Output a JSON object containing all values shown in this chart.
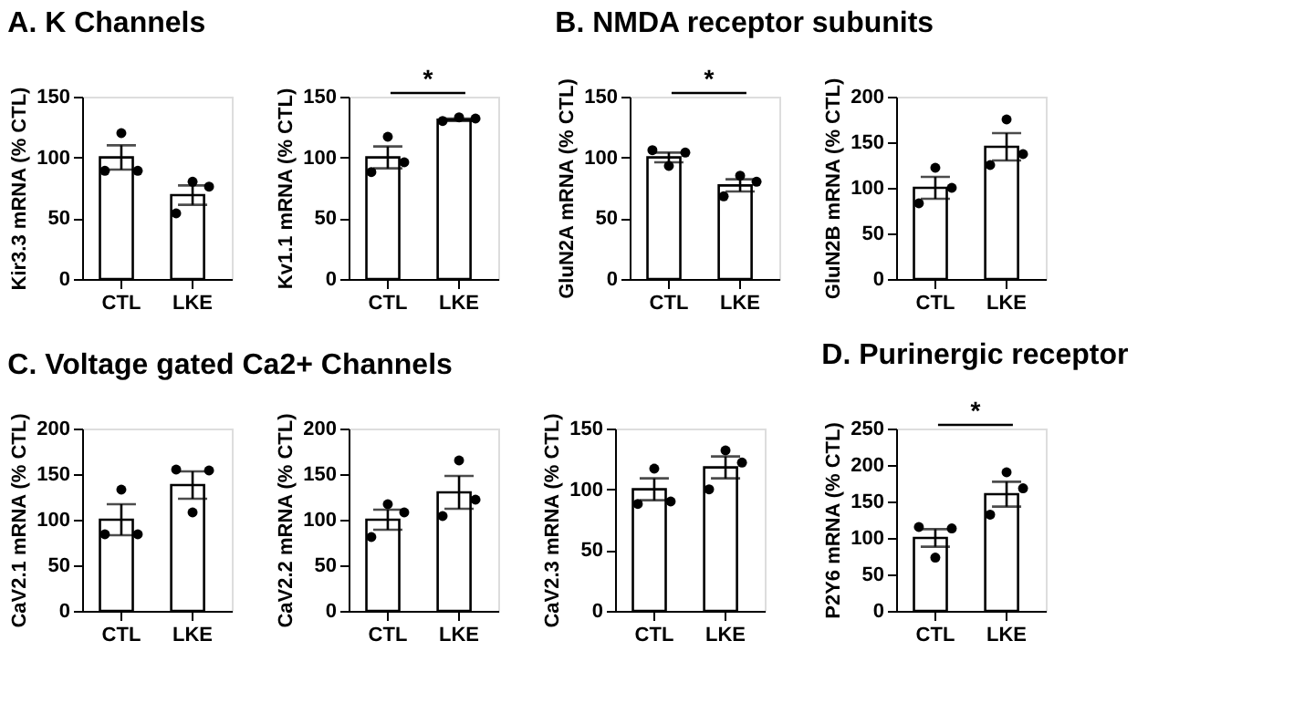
{
  "chart_data": [
    {
      "type": "bar",
      "title": "A. K Channels",
      "ylabel": "Kir3.3 mRNA (%  CTL)",
      "categories": [
        "CTL",
        "LKE"
      ],
      "ylim": [
        0,
        150
      ],
      "yticks": [
        0,
        50,
        100,
        150
      ],
      "grid": false,
      "marker": "circle",
      "series": [
        {
          "color": "#ffffff",
          "values": [
            100,
            69
          ],
          "errors": [
            10,
            8
          ]
        },
        {
          "type": "scatter",
          "color": "#000000",
          "x": [
            "CTL",
            "CTL",
            "CTL",
            "LKE",
            "LKE",
            "LKE"
          ],
          "values": [
            89,
            120,
            89,
            54,
            80,
            76
          ]
        }
      ]
    },
    {
      "type": "bar",
      "ylabel": "Kv1.1 mRNA (%  CTL)",
      "categories": [
        "CTL",
        "LKE"
      ],
      "ylim": [
        0,
        150
      ],
      "yticks": [
        0,
        50,
        100,
        150
      ],
      "grid": false,
      "marker": "circle",
      "annotations": [
        "*"
      ],
      "series": [
        {
          "color": "#ffffff",
          "values": [
            100,
            131
          ],
          "errors": [
            9,
            1
          ]
        },
        {
          "type": "scatter",
          "color": "#000000",
          "x": [
            "CTL",
            "CTL",
            "CTL",
            "LKE",
            "LKE",
            "LKE"
          ],
          "values": [
            88,
            117,
            96,
            130,
            133,
            132
          ]
        }
      ]
    },
    {
      "type": "bar",
      "title": "B. NMDA receptor subunits",
      "ylabel": "GluN2A mRNA (%  CTL)",
      "categories": [
        "CTL",
        "LKE"
      ],
      "ylim": [
        0,
        150
      ],
      "yticks": [
        0,
        50,
        100,
        150
      ],
      "grid": false,
      "marker": "circle",
      "annotations": [
        "*"
      ],
      "series": [
        {
          "color": "#ffffff",
          "values": [
            100,
            77
          ],
          "errors": [
            4,
            5
          ]
        },
        {
          "type": "scatter",
          "color": "#000000",
          "x": [
            "CTL",
            "CTL",
            "CTL",
            "LKE",
            "LKE",
            "LKE"
          ],
          "values": [
            106,
            93,
            104,
            68,
            85,
            80
          ]
        }
      ]
    },
    {
      "type": "bar",
      "ylabel": "GluN2B mRNA (%  CTL)",
      "categories": [
        "CTL",
        "LKE"
      ],
      "ylim": [
        0,
        200
      ],
      "yticks": [
        0,
        50,
        100,
        150,
        200
      ],
      "grid": false,
      "marker": "circle",
      "series": [
        {
          "color": "#ffffff",
          "values": [
            100,
            145
          ],
          "errors": [
            12,
            15
          ]
        },
        {
          "type": "scatter",
          "color": "#000000",
          "x": [
            "CTL",
            "CTL",
            "CTL",
            "LKE",
            "LKE",
            "LKE"
          ],
          "values": [
            83,
            122,
            100,
            125,
            175,
            137
          ]
        }
      ]
    },
    {
      "type": "bar",
      "title": "C. Voltage gated Ca2+ Channels",
      "ylabel": "CaV2.1 mRNA (%  CTL)",
      "categories": [
        "CTL",
        "LKE"
      ],
      "ylim": [
        0,
        200
      ],
      "yticks": [
        0,
        50,
        100,
        150,
        200
      ],
      "grid": false,
      "marker": "circle",
      "series": [
        {
          "color": "#ffffff",
          "values": [
            100,
            138
          ],
          "errors": [
            17,
            15
          ]
        },
        {
          "type": "scatter",
          "color": "#000000",
          "x": [
            "CTL",
            "CTL",
            "CTL",
            "LKE",
            "LKE",
            "LKE"
          ],
          "values": [
            84,
            133,
            84,
            155,
            108,
            154
          ]
        }
      ]
    },
    {
      "type": "bar",
      "ylabel": "CaV2.2 mRNA (%  CTL)",
      "categories": [
        "CTL",
        "LKE"
      ],
      "ylim": [
        0,
        200
      ],
      "yticks": [
        0,
        50,
        100,
        150,
        200
      ],
      "grid": false,
      "marker": "circle",
      "series": [
        {
          "color": "#ffffff",
          "values": [
            100,
            130
          ],
          "errors": [
            11,
            18
          ]
        },
        {
          "type": "scatter",
          "color": "#000000",
          "x": [
            "CTL",
            "CTL",
            "CTL",
            "LKE",
            "LKE",
            "LKE"
          ],
          "values": [
            81,
            117,
            108,
            104,
            165,
            122
          ]
        }
      ]
    },
    {
      "type": "bar",
      "ylabel": "CaV2.3 mRNA (%  CTL)",
      "categories": [
        "CTL",
        "LKE"
      ],
      "ylim": [
        0,
        150
      ],
      "yticks": [
        0,
        50,
        100,
        150
      ],
      "grid": false,
      "marker": "circle",
      "series": [
        {
          "color": "#ffffff",
          "values": [
            100,
            118
          ],
          "errors": [
            9,
            9
          ]
        },
        {
          "type": "scatter",
          "color": "#000000",
          "x": [
            "CTL",
            "CTL",
            "CTL",
            "LKE",
            "LKE",
            "LKE"
          ],
          "values": [
            88,
            117,
            90,
            100,
            132,
            122
          ]
        }
      ]
    },
    {
      "type": "bar",
      "title": "D. Purinergic receptor",
      "ylabel": "P2Y6 mRNA (%  CTL)",
      "categories": [
        "CTL",
        "LKE"
      ],
      "ylim": [
        0,
        250
      ],
      "yticks": [
        0,
        50,
        100,
        150,
        200,
        250
      ],
      "grid": false,
      "marker": "circle",
      "annotations": [
        "*"
      ],
      "series": [
        {
          "color": "#ffffff",
          "values": [
            100,
            160
          ],
          "errors": [
            12,
            17
          ]
        },
        {
          "type": "scatter",
          "color": "#000000",
          "x": [
            "CTL",
            "CTL",
            "CTL",
            "LKE",
            "LKE",
            "LKE"
          ],
          "values": [
            115,
            73,
            113,
            132,
            190,
            168
          ]
        }
      ]
    }
  ]
}
